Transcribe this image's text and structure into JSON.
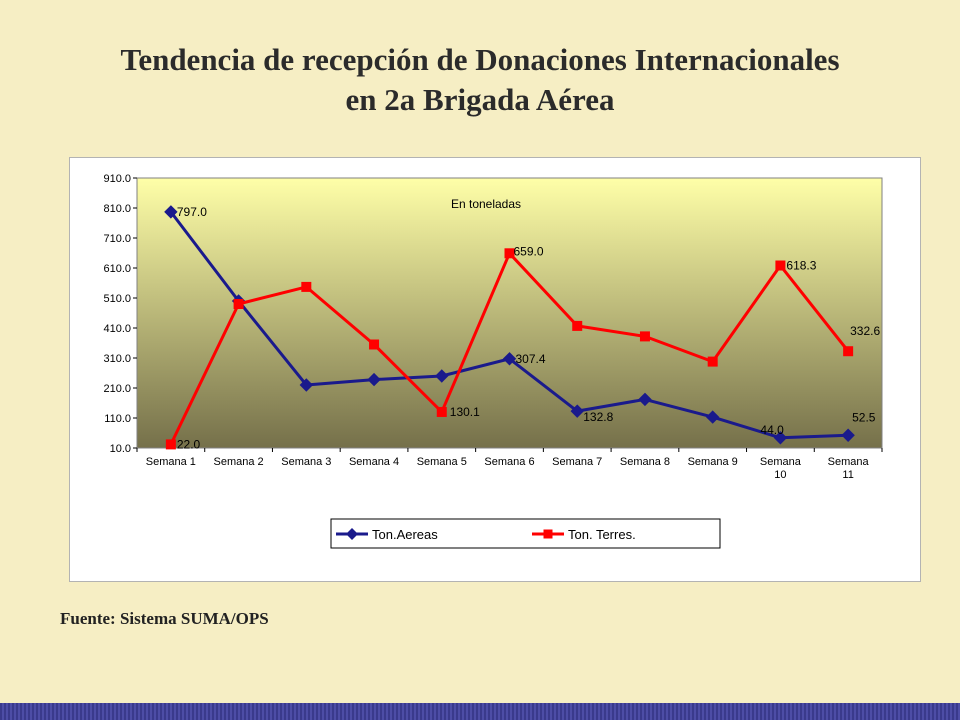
{
  "slide": {
    "title_line1": "Tendencia de recepción de Donaciones Internacionales",
    "title_line2": "en 2a Brigada Aérea",
    "source": "Fuente: Sistema SUMA/OPS"
  },
  "colors": {
    "background": "#f6eec4",
    "series_aereas": "#1a1a8c",
    "series_terres": "#ff0000",
    "plot_gradient_top": "#ffffa8",
    "plot_gradient_bottom": "#75704a",
    "bottom_band": "#3a3a8c"
  },
  "chart_data": {
    "type": "line",
    "annotation": "En toneladas",
    "categories": [
      [
        "Semana 1"
      ],
      [
        "Semana 2"
      ],
      [
        "Semana 3"
      ],
      [
        "Semana 4"
      ],
      [
        "Semana 5"
      ],
      [
        "Semana 6"
      ],
      [
        "Semana 7"
      ],
      [
        "Semana 8"
      ],
      [
        "Semana 9"
      ],
      [
        "Semana",
        "10"
      ],
      [
        "Semana",
        "11"
      ]
    ],
    "yticks": [
      "10.0",
      "110.0",
      "210.0",
      "310.0",
      "410.0",
      "510.0",
      "610.0",
      "710.0",
      "810.0",
      "910.0"
    ],
    "ylim": [
      10,
      910
    ],
    "legend_position": "bottom",
    "grid": false,
    "series": [
      {
        "name": "Ton.Aereas",
        "marker": "diamond",
        "values": [
          797.0,
          500.0,
          220.0,
          238.0,
          250.0,
          307.4,
          132.8,
          172.0,
          113.0,
          44.0,
          52.5
        ],
        "labels": [
          "797.0",
          "",
          "",
          "",
          "",
          "307.4",
          "132.8",
          "",
          "",
          "44.0",
          "52.5"
        ]
      },
      {
        "name": "Ton. Terres.",
        "marker": "square",
        "values": [
          22.0,
          490.0,
          547.0,
          355.0,
          130.1,
          659.0,
          417.0,
          382.0,
          298.0,
          618.3,
          332.6
        ],
        "labels": [
          "22.0",
          "",
          "",
          "",
          "130.1",
          "659.0",
          "",
          "",
          "",
          "618.3",
          "332.6"
        ]
      }
    ]
  }
}
